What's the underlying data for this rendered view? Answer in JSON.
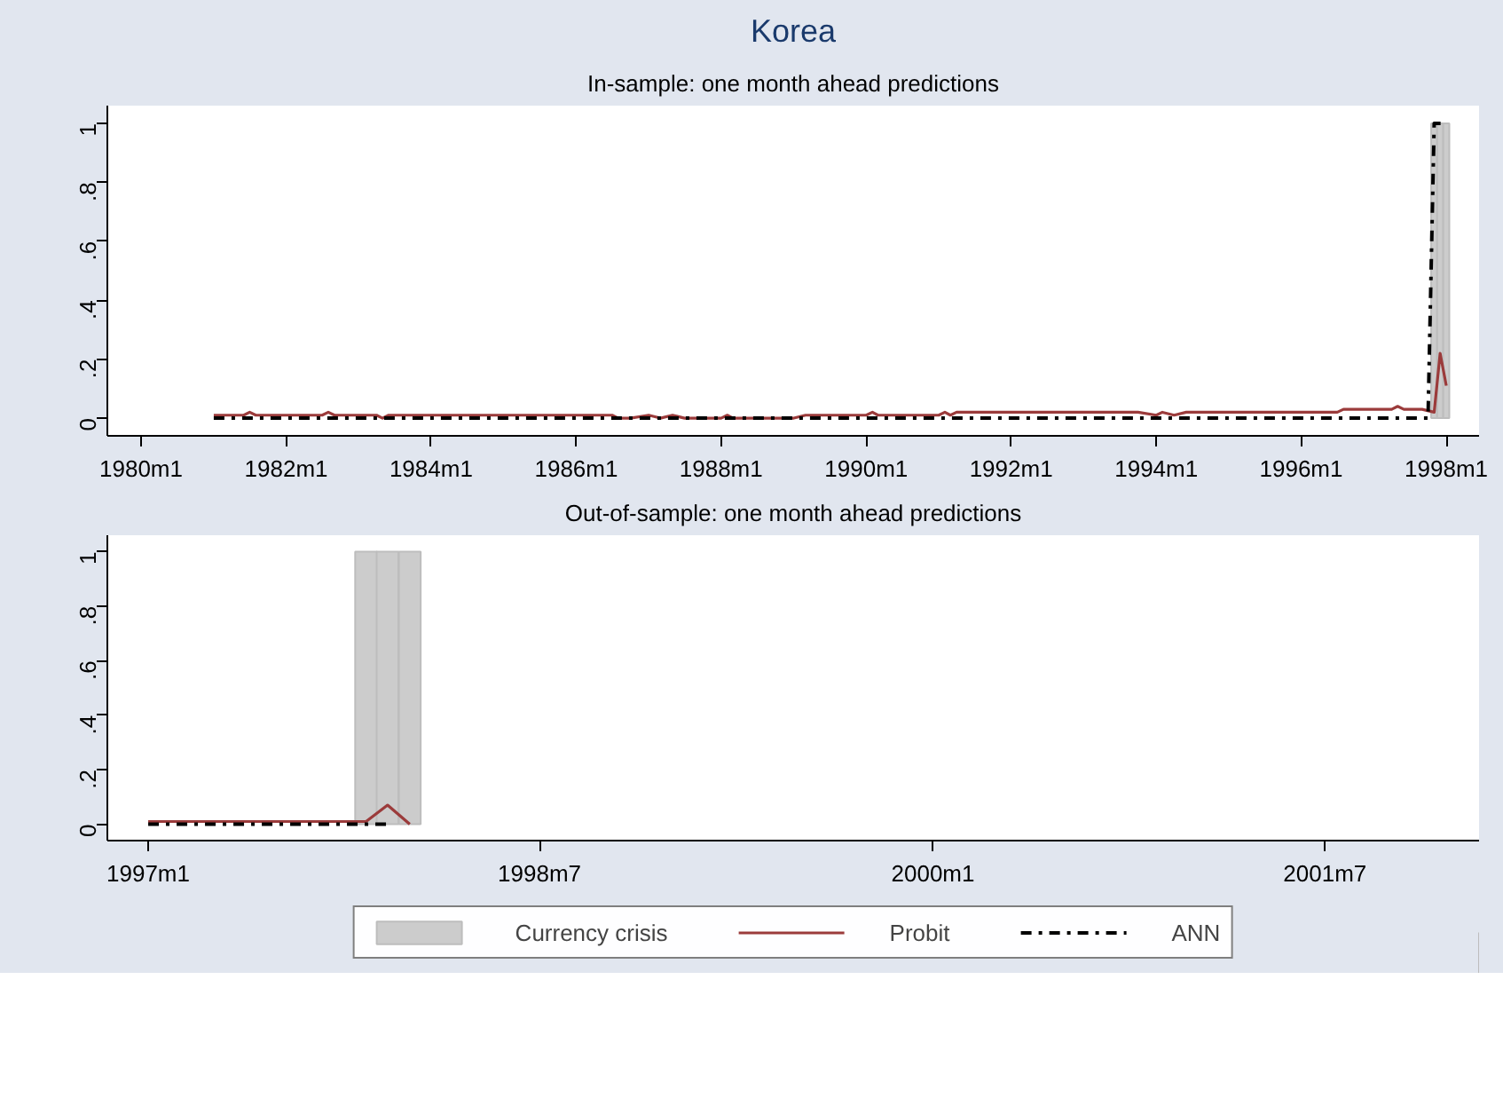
{
  "chart_data": [
    {
      "type": "line",
      "title": "Korea",
      "subtitle": "In-sample: one month ahead predictions",
      "xlim": [
        "1979-07-15",
        "1998-06-15"
      ],
      "ylim": [
        -0.06,
        1.06
      ],
      "xticks": [
        {
          "value": "1980-01",
          "label": "1980m1"
        },
        {
          "value": "1982-01",
          "label": "1982m1"
        },
        {
          "value": "1984-01",
          "label": "1984m1"
        },
        {
          "value": "1986-01",
          "label": "1986m1"
        },
        {
          "value": "1988-01",
          "label": "1988m1"
        },
        {
          "value": "1990-01",
          "label": "1990m1"
        },
        {
          "value": "1992-01",
          "label": "1992m1"
        },
        {
          "value": "1994-01",
          "label": "1994m1"
        },
        {
          "value": "1996-01",
          "label": "1996m1"
        },
        {
          "value": "1998-01",
          "label": "1998m1"
        }
      ],
      "yticks": [
        0,
        {
          "value": 0.2,
          "label": ".2"
        },
        {
          "value": 0.4,
          "label": ".4"
        },
        {
          "value": 0.6,
          "label": ".6"
        },
        {
          "value": 0.8,
          "label": ".8"
        },
        1
      ],
      "series": [
        {
          "type": "bar",
          "color": "#cccccc",
          "x": [
            "1997-11",
            "1997-12",
            "1998-01"
          ],
          "values": [
            1,
            1,
            1
          ]
        },
        {
          "color": "#9b3b3b",
          "line_style": "solid",
          "x": [
            "1981-01",
            "1981-06",
            "1981-07",
            "1981-08",
            "1982-07",
            "1982-08",
            "1982-09",
            "1983-04",
            "1983-05",
            "1983-06",
            "1986-07",
            "1986-08",
            "1986-10",
            "1987-01",
            "1987-03",
            "1987-05",
            "1987-07",
            "1988-01",
            "1988-02",
            "1988-03",
            "1989-01",
            "1989-03",
            "1990-01",
            "1990-02",
            "1990-03",
            "1991-01",
            "1991-02",
            "1991-03",
            "1991-04",
            "1993-10",
            "1994-01",
            "1994-02",
            "1994-04",
            "1994-06",
            "1996-07",
            "1996-08",
            "1997-04",
            "1997-05",
            "1997-06",
            "1997-09",
            "1997-11",
            "1997-12",
            "1998-01"
          ],
          "values": [
            0.01,
            0.01,
            0.02,
            0.01,
            0.01,
            0.02,
            0.01,
            0.01,
            0.0,
            0.01,
            0.01,
            0.0,
            0.0,
            0.01,
            0.0,
            0.01,
            0.0,
            0.0,
            0.01,
            0.0,
            0.0,
            0.01,
            0.01,
            0.02,
            0.01,
            0.01,
            0.02,
            0.01,
            0.02,
            0.02,
            0.01,
            0.02,
            0.01,
            0.02,
            0.02,
            0.03,
            0.03,
            0.04,
            0.03,
            0.03,
            0.02,
            0.22,
            0.11
          ]
        },
        {
          "color": "#000000",
          "line_style": "dashdot",
          "x": [
            "1981-01",
            "1997-10",
            "1997-11",
            "1998-01"
          ],
          "values": [
            0,
            0,
            1,
            1
          ]
        }
      ]
    },
    {
      "type": "line",
      "subtitle": "Out-of-sample: one month ahead predictions",
      "legend": "bottom",
      "xlim": [
        "1996-11-05",
        "2002-02-01"
      ],
      "ylim": [
        -0.06,
        1.06
      ],
      "xticks": [
        {
          "value": "1997-01",
          "label": "1997m1"
        },
        {
          "value": "1998-07",
          "label": "1998m7"
        },
        {
          "value": "2000-01",
          "label": "2000m1"
        },
        {
          "value": "2001-07",
          "label": "2001m7"
        }
      ],
      "yticks": [
        0,
        {
          "value": 0.2,
          "label": ".2"
        },
        {
          "value": 0.4,
          "label": ".4"
        },
        {
          "value": 0.6,
          "label": ".6"
        },
        {
          "value": 0.8,
          "label": ".8"
        },
        1
      ],
      "series": [
        {
          "name": "Currency crisis",
          "type": "bar",
          "color": "#cccccc",
          "x": [
            "1997-11",
            "1997-12",
            "1998-01"
          ],
          "values": [
            1,
            1,
            1
          ]
        },
        {
          "name": "Probit",
          "color": "#9b3b3b",
          "line_style": "solid",
          "x": [
            "1997-01",
            "1997-10",
            "1997-11",
            "1997-12",
            "1998-01"
          ],
          "values": [
            0.01,
            0.01,
            0.01,
            0.07,
            0.0
          ]
        },
        {
          "name": "ANN",
          "color": "#000000",
          "line_style": "dashdot",
          "x": [
            "1997-01",
            "1997-12"
          ],
          "values": [
            0,
            0
          ]
        }
      ]
    }
  ]
}
